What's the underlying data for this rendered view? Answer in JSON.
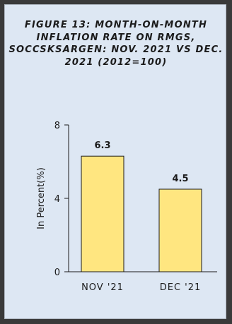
{
  "chart_data": {
    "type": "bar",
    "title": "FIGURE 13: MONTH-ON-MONTH INFLATION RATE ON RMGS, SOCCSKSARGEN: NOV. 2021 VS DEC. 2021 (2012=100)",
    "categories": [
      "NOV '21",
      "DEC '21"
    ],
    "values": [
      6.3,
      4.5
    ],
    "data_labels": [
      "6.3",
      "4.5"
    ],
    "xlabel": "",
    "ylabel": "In Percent(%)",
    "ylim": [
      0,
      8
    ],
    "yticks": [
      "0",
      "4",
      "8"
    ],
    "grid": false,
    "legend": "none",
    "colors": {
      "bar": "#ffe680",
      "bar_stroke": "#1b1b1b",
      "background": "#dde7f3",
      "frame": "#3a3a3a"
    }
  }
}
